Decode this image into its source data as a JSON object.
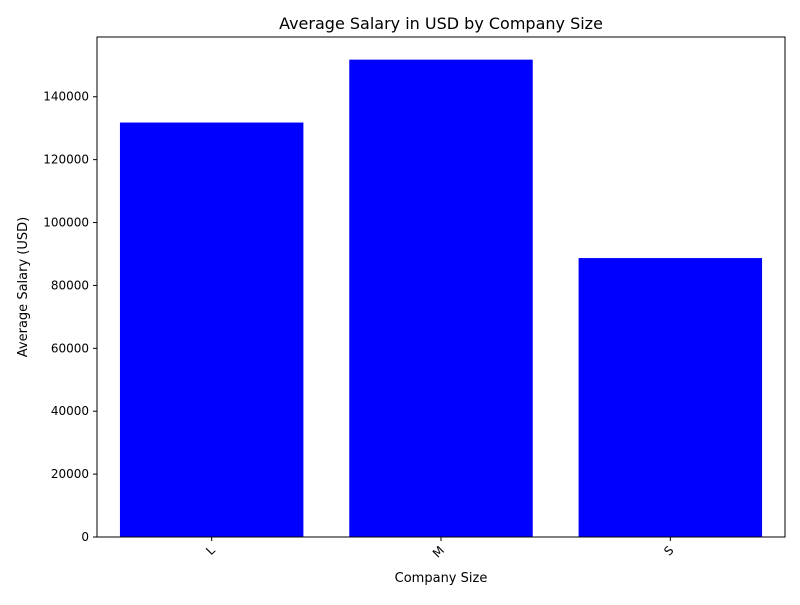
{
  "chart_data": {
    "type": "bar",
    "title": "Average Salary in USD by Company Size",
    "xlabel": "Company Size",
    "ylabel": "Average Salary (USD)",
    "categories": [
      "L",
      "M",
      "S"
    ],
    "values": [
      131800,
      151800,
      88700
    ],
    "ylim": [
      0,
      159000
    ],
    "yticks": [
      0,
      20000,
      40000,
      60000,
      80000,
      100000,
      120000,
      140000
    ],
    "bar_color": "#0000ff",
    "grid": false,
    "legend": "none",
    "xtick_rotation": "45 degrees"
  }
}
